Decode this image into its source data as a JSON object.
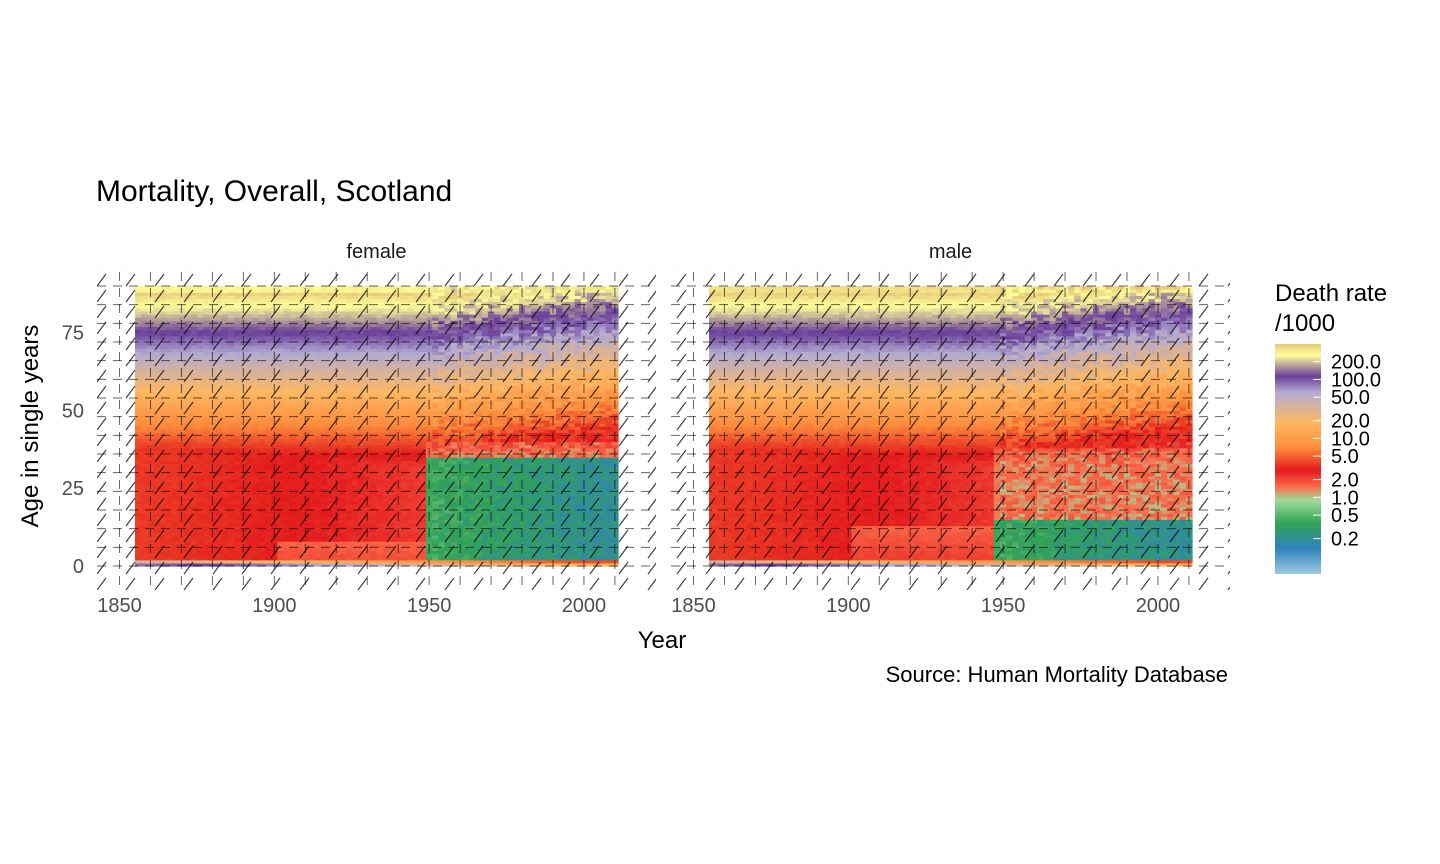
{
  "chart_data": {
    "type": "heatmap",
    "title": "Mortality, Overall, Scotland",
    "caption": "Source: Human Mortality Database",
    "xlabel": "Year",
    "ylabel": "Age in single years",
    "x_range": [
      1855,
      2011
    ],
    "y_range": [
      0,
      90
    ],
    "x_ticks": [
      1850,
      1900,
      1950,
      2000
    ],
    "y_ticks": [
      0,
      25,
      50,
      75
    ],
    "grid": true,
    "legend": {
      "title_line1": "Death rate",
      "title_line2": "/1000",
      "position": "right",
      "scale": "log",
      "range": [
        0.05,
        400
      ],
      "labels": [
        "200.0",
        "100.0",
        "50.0",
        "20.0",
        "10.0",
        "5.0",
        "2.0",
        "1.0",
        "0.5",
        "0.2"
      ],
      "values": [
        200,
        100,
        50,
        20,
        10,
        5,
        2,
        1,
        0.5,
        0.2
      ],
      "colors": [
        "#9ECAE1",
        "#3182BD",
        "#31A354",
        "#A1D99B",
        "#FB6A4A",
        "#E31A1C",
        "#FD8D3C",
        "#FDB863",
        "#B2ABD2",
        "#6A3D9A",
        "#FFFF99",
        "#E6C87A"
      ],
      "color_stops": [
        0,
        0.11,
        0.22,
        0.32,
        0.38,
        0.45,
        0.55,
        0.66,
        0.79,
        0.86,
        0.95,
        1.0
      ]
    },
    "panels": [
      {
        "name": "female",
        "step_end_year": 1950,
        "step_age_before": 8,
        "step_age_after": 40,
        "green_age": 35,
        "young_adult_peak": 45
      },
      {
        "name": "male",
        "step_end_year": 1948,
        "step_age_before": 13,
        "step_age_after": 38,
        "green_age": 17,
        "young_adult_peak": 38
      }
    ]
  }
}
